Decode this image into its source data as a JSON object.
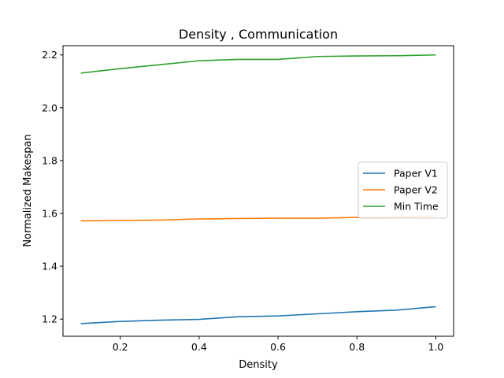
{
  "chart_data": {
    "type": "line",
    "title": "Density , Communication",
    "xlabel": "Density",
    "ylabel": "Normalized Makespan",
    "x": [
      0.1,
      0.2,
      0.3,
      0.4,
      0.5,
      0.6,
      0.7,
      0.8,
      0.9,
      1.0
    ],
    "xlim": [
      0.055,
      1.045
    ],
    "ylim": [
      1.135,
      2.235
    ],
    "xticks": [
      0.2,
      0.4,
      0.6,
      0.8,
      1.0
    ],
    "xtick_labels": [
      "0.2",
      "0.4",
      "0.6",
      "0.8",
      "1.0"
    ],
    "yticks": [
      1.2,
      1.4,
      1.6,
      1.8,
      2.0,
      2.2
    ],
    "ytick_labels": [
      "1.2",
      "1.4",
      "1.6",
      "1.8",
      "2.0",
      "2.2"
    ],
    "grid": false,
    "legend_position": "center-right",
    "series": [
      {
        "name": "Paper V1",
        "color": "#1f77b4",
        "values": [
          1.183,
          1.191,
          1.196,
          1.199,
          1.209,
          1.212,
          1.22,
          1.228,
          1.234,
          1.247
        ]
      },
      {
        "name": "Paper V2",
        "color": "#ff7f0e",
        "values": [
          1.572,
          1.573,
          1.575,
          1.579,
          1.581,
          1.582,
          1.582,
          1.585,
          1.586,
          1.59
        ]
      },
      {
        "name": "Min Time",
        "color": "#2ca02c",
        "values": [
          2.131,
          2.148,
          2.163,
          2.178,
          2.183,
          2.183,
          2.194,
          2.196,
          2.197,
          2.2
        ]
      }
    ]
  }
}
